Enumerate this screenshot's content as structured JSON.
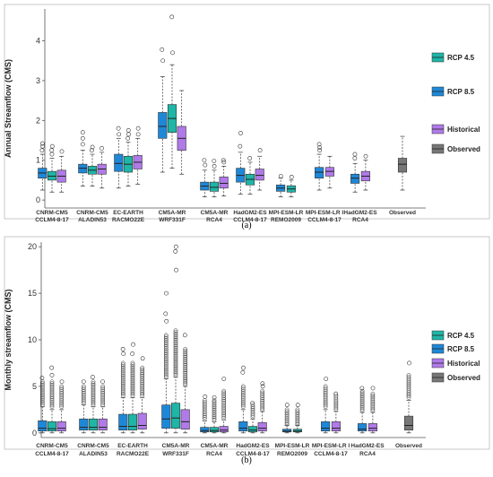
{
  "colors": {
    "rcp45": "#1fb5a7",
    "rcp85": "#1e88d8",
    "historical": "#b07ae8",
    "observed": "#777777"
  },
  "legend": [
    {
      "key": "rcp45",
      "label": "RCP 4.5"
    },
    {
      "key": "rcp85",
      "label": "RCP 8.5"
    },
    {
      "key": "historical",
      "label": "Historical"
    },
    {
      "key": "observed",
      "label": "Observed"
    }
  ],
  "chart_data": [
    {
      "type": "boxplot",
      "panel": "(a)",
      "caption": "(a)",
      "ylabel": "Annual Streamflow (CMS)",
      "xlabel": "",
      "ylim": [
        -0.2,
        4.8
      ],
      "yticks": [
        0,
        1,
        2,
        3,
        4
      ],
      "grid": false,
      "legend_position": "right",
      "categories": [
        "CNRM-CM5\nCCLM4-8-17",
        "CNRM-CM5\nALADIN53",
        "EC-EARTH\nRACMO22E",
        "CM5A-MR\nWRF331F",
        "CM5A-MR\nRCA4",
        "HadGM2-ES\nCCLM4-8-17",
        "MPI-ESM-LR\nREMO2009",
        "MPI-ESM-LR I\nCCLM4-8-17",
        "HadGM2-ES\nRCA4",
        "Observed"
      ],
      "boxes": [
        {
          "cat": 0,
          "series": "rcp85",
          "stats": [
            0.25,
            0.55,
            0.68,
            0.8,
            1.15
          ],
          "outliers": [
            1.25,
            1.35,
            1.42
          ]
        },
        {
          "cat": 0,
          "series": "rcp45",
          "stats": [
            0.2,
            0.5,
            0.6,
            0.72,
            1.05
          ],
          "outliers": [
            1.15,
            1.25,
            1.35
          ]
        },
        {
          "cat": 0,
          "series": "historical",
          "stats": [
            0.2,
            0.45,
            0.6,
            0.75,
            1.1
          ],
          "outliers": [
            1.22
          ]
        },
        {
          "cat": 1,
          "series": "rcp85",
          "stats": [
            0.35,
            0.68,
            0.8,
            0.9,
            1.25
          ],
          "outliers": [
            1.4,
            1.55,
            1.7
          ]
        },
        {
          "cat": 1,
          "series": "rcp45",
          "stats": [
            0.35,
            0.65,
            0.75,
            0.85,
            1.15
          ],
          "outliers": [
            1.25,
            1.33
          ]
        },
        {
          "cat": 1,
          "series": "historical",
          "stats": [
            0.3,
            0.65,
            0.78,
            0.9,
            1.2
          ],
          "outliers": [
            1.3
          ]
        },
        {
          "cat": 2,
          "series": "rcp85",
          "stats": [
            0.3,
            0.72,
            0.92,
            1.15,
            1.55
          ],
          "outliers": [
            1.65,
            1.8
          ]
        },
        {
          "cat": 2,
          "series": "rcp45",
          "stats": [
            0.35,
            0.7,
            0.9,
            1.1,
            1.45
          ],
          "outliers": [
            1.55,
            1.65,
            1.75
          ]
        },
        {
          "cat": 2,
          "series": "historical",
          "stats": [
            0.4,
            0.78,
            0.95,
            1.12,
            1.55
          ],
          "outliers": [
            1.65,
            1.8
          ]
        },
        {
          "cat": 3,
          "series": "rcp85",
          "stats": [
            0.7,
            1.55,
            1.85,
            2.2,
            3.1
          ],
          "outliers": [
            3.5,
            3.78
          ]
        },
        {
          "cat": 3,
          "series": "rcp45",
          "stats": [
            0.8,
            1.7,
            2.05,
            2.4,
            3.4
          ],
          "outliers": [
            3.7,
            4.6
          ]
        },
        {
          "cat": 3,
          "series": "historical",
          "stats": [
            0.65,
            1.25,
            1.55,
            1.85,
            2.75
          ],
          "outliers": []
        },
        {
          "cat": 4,
          "series": "rcp85",
          "stats": [
            0.08,
            0.25,
            0.35,
            0.45,
            0.75
          ],
          "outliers": [
            0.88,
            1.0
          ]
        },
        {
          "cat": 4,
          "series": "rcp45",
          "stats": [
            0.08,
            0.22,
            0.32,
            0.45,
            0.75
          ],
          "outliers": [
            0.85,
            0.98
          ]
        },
        {
          "cat": 4,
          "series": "historical",
          "stats": [
            0.1,
            0.3,
            0.42,
            0.58,
            0.85
          ],
          "outliers": [
            0.95,
            1.0
          ]
        },
        {
          "cat": 5,
          "series": "rcp85",
          "stats": [
            0.15,
            0.45,
            0.62,
            0.8,
            1.2
          ],
          "outliers": [
            1.35,
            1.68
          ]
        },
        {
          "cat": 5,
          "series": "rcp45",
          "stats": [
            0.15,
            0.38,
            0.52,
            0.65,
            0.95
          ],
          "outliers": [
            1.05
          ]
        },
        {
          "cat": 5,
          "series": "historical",
          "stats": [
            0.25,
            0.5,
            0.62,
            0.78,
            1.1
          ],
          "outliers": [
            1.25
          ]
        },
        {
          "cat": 6,
          "series": "rcp85",
          "stats": [
            0.08,
            0.22,
            0.3,
            0.38,
            0.55
          ],
          "outliers": [
            0.6
          ]
        },
        {
          "cat": 6,
          "series": "rcp45",
          "stats": [
            0.08,
            0.2,
            0.28,
            0.36,
            0.5
          ],
          "outliers": [
            0.58
          ]
        },
        {
          "cat": 7,
          "series": "rcp85",
          "stats": [
            0.25,
            0.55,
            0.7,
            0.82,
            1.15
          ],
          "outliers": [
            1.25,
            1.32,
            1.4
          ]
        },
        {
          "cat": 7,
          "series": "historical",
          "stats": [
            0.3,
            0.6,
            0.72,
            0.82,
            1.1
          ],
          "outliers": []
        },
        {
          "cat": 8,
          "series": "rcp85",
          "stats": [
            0.2,
            0.42,
            0.55,
            0.65,
            0.92
          ],
          "outliers": [
            1.05,
            1.15
          ]
        },
        {
          "cat": 8,
          "series": "historical",
          "stats": [
            0.25,
            0.48,
            0.6,
            0.72,
            1.0
          ],
          "outliers": [
            1.1
          ]
        },
        {
          "cat": 9,
          "series": "observed",
          "stats": [
            0.25,
            0.7,
            0.9,
            1.05,
            1.6
          ],
          "outliers": []
        }
      ]
    },
    {
      "type": "boxplot",
      "panel": "(b)",
      "caption": "(b)",
      "ylabel": "Monthly streamflow (CMS)",
      "xlabel": "",
      "ylim": [
        -0.5,
        20.5
      ],
      "yticks": [
        0,
        5,
        10,
        15,
        20
      ],
      "grid": false,
      "legend_position": "right",
      "categories": [
        "CNRM-CM5\nCCLM4-8-17",
        "CNRM-CM5\nALADIN53",
        "EC-EARTH\nRACMO22E",
        "CM5A-MR\nWRF331F",
        "CM5A-MR\nRCA4",
        "HadGM2-ES\nCCLM4-8-17",
        "MPI-ESM-LR\nREMO2009",
        "MPI-ESM-LR I\nCCLM4-8-17",
        "HadGM2-ES\nRCA4",
        "Observed"
      ],
      "boxes": [
        {
          "cat": 0,
          "series": "rcp85",
          "stats": [
            0,
            0.2,
            0.5,
            1.3,
            2.8
          ],
          "outliers_range": [
            3.0,
            5.5
          ],
          "outliers": [
            5.9
          ]
        },
        {
          "cat": 0,
          "series": "rcp45",
          "stats": [
            0,
            0.2,
            0.45,
            1.2,
            2.5
          ],
          "outliers_range": [
            2.8,
            5.5
          ],
          "outliers": [
            6.2,
            7.0
          ]
        },
        {
          "cat": 0,
          "series": "historical",
          "stats": [
            0,
            0.2,
            0.5,
            1.2,
            2.5
          ],
          "outliers_range": [
            2.8,
            5.0
          ],
          "outliers": [
            5.5
          ]
        },
        {
          "cat": 1,
          "series": "rcp85",
          "stats": [
            0,
            0.3,
            0.6,
            1.5,
            3.0
          ],
          "outliers_range": [
            3.2,
            5.0
          ],
          "outliers": [
            5.5
          ]
        },
        {
          "cat": 1,
          "series": "rcp45",
          "stats": [
            0,
            0.3,
            0.6,
            1.5,
            2.8
          ],
          "outliers_range": [
            3.0,
            5.5
          ],
          "outliers": [
            6.0
          ]
        },
        {
          "cat": 1,
          "series": "historical",
          "stats": [
            0,
            0.3,
            0.6,
            1.5,
            2.8
          ],
          "outliers_range": [
            3.0,
            5.0
          ],
          "outliers": [
            5.5
          ]
        },
        {
          "cat": 2,
          "series": "rcp85",
          "stats": [
            0,
            0.3,
            0.7,
            2.0,
            3.8
          ],
          "outliers_range": [
            4.0,
            7.5
          ],
          "outliers": [
            8.5,
            9.0
          ]
        },
        {
          "cat": 2,
          "series": "rcp45",
          "stats": [
            0,
            0.3,
            0.7,
            2.0,
            3.8
          ],
          "outliers_range": [
            4.0,
            7.5
          ],
          "outliers": [
            8.5,
            9.5
          ]
        },
        {
          "cat": 2,
          "series": "historical",
          "stats": [
            0,
            0.4,
            0.8,
            2.1,
            3.8
          ],
          "outliers_range": [
            4.0,
            7.0
          ],
          "outliers": [
            8.0
          ]
        },
        {
          "cat": 3,
          "series": "rcp85",
          "stats": [
            0,
            0.5,
            1.5,
            3.0,
            5.8
          ],
          "outliers_range": [
            6.0,
            10.5
          ],
          "outliers": [
            12.0,
            12.8,
            15.0
          ]
        },
        {
          "cat": 3,
          "series": "rcp45",
          "stats": [
            0,
            0.5,
            1.6,
            3.2,
            6.0
          ],
          "outliers_range": [
            6.2,
            11.0
          ],
          "outliers": [
            17.5,
            19.5,
            20.0
          ]
        },
        {
          "cat": 3,
          "series": "historical",
          "stats": [
            0,
            0.4,
            1.2,
            2.5,
            5.0
          ],
          "outliers_range": [
            5.2,
            9.0
          ],
          "outliers": [
            10.5
          ]
        },
        {
          "cat": 4,
          "series": "rcp85",
          "stats": [
            0,
            0.1,
            0.25,
            0.6,
            1.3
          ],
          "outliers_range": [
            1.5,
            3.5
          ],
          "outliers": [
            3.9
          ]
        },
        {
          "cat": 4,
          "series": "rcp45",
          "stats": [
            0,
            0.1,
            0.25,
            0.6,
            1.2
          ],
          "outliers_range": [
            1.4,
            3.5
          ],
          "outliers": [
            3.8
          ]
        },
        {
          "cat": 4,
          "series": "historical",
          "stats": [
            0,
            0.1,
            0.3,
            0.7,
            1.4
          ],
          "outliers_range": [
            1.6,
            4.5
          ],
          "outliers": [
            5.8
          ]
        },
        {
          "cat": 5,
          "series": "rcp85",
          "stats": [
            0,
            0.2,
            0.5,
            1.2,
            2.5
          ],
          "outliers_range": [
            2.8,
            5.0
          ],
          "outliers": [
            6.5,
            7.0
          ]
        },
        {
          "cat": 5,
          "series": "rcp45",
          "stats": [
            0,
            0.1,
            0.3,
            0.7,
            1.5
          ],
          "outliers_range": [
            1.7,
            3.0
          ],
          "outliers": [
            3.2
          ]
        },
        {
          "cat": 5,
          "series": "historical",
          "stats": [
            0,
            0.2,
            0.5,
            1.1,
            2.3
          ],
          "outliers_range": [
            2.5,
            4.5
          ],
          "outliers": [
            5.0,
            5.3
          ]
        },
        {
          "cat": 6,
          "series": "rcp85",
          "stats": [
            0,
            0.1,
            0.2,
            0.4,
            0.8
          ],
          "outliers_range": [
            0.9,
            2.5
          ],
          "outliers": [
            3.0
          ]
        },
        {
          "cat": 6,
          "series": "rcp45",
          "stats": [
            0,
            0.1,
            0.2,
            0.4,
            0.8
          ],
          "outliers_range": [
            0.9,
            2.5
          ],
          "outliers": [
            3.0
          ]
        },
        {
          "cat": 7,
          "series": "rcp85",
          "stats": [
            0,
            0.2,
            0.5,
            1.2,
            2.5
          ],
          "outliers_range": [
            2.8,
            5.0
          ],
          "outliers": [
            5.8
          ]
        },
        {
          "cat": 7,
          "series": "historical",
          "stats": [
            0,
            0.2,
            0.5,
            1.2,
            2.3
          ],
          "outliers_range": [
            2.5,
            4.0
          ],
          "outliers": [
            4.2
          ]
        },
        {
          "cat": 8,
          "series": "rcp85",
          "stats": [
            0,
            0.2,
            0.4,
            1.0,
            2.2
          ],
          "outliers_range": [
            2.4,
            4.5
          ],
          "outliers": [
            4.8
          ]
        },
        {
          "cat": 8,
          "series": "historical",
          "stats": [
            0,
            0.2,
            0.5,
            1.0,
            2.2
          ],
          "outliers_range": [
            2.4,
            4.2
          ],
          "outliers": [
            4.8
          ]
        },
        {
          "cat": 9,
          "series": "observed",
          "stats": [
            0,
            0.3,
            0.8,
            1.8,
            3.5
          ],
          "outliers_range": [
            3.8,
            6.2
          ],
          "outliers": [
            7.5
          ]
        }
      ]
    }
  ]
}
